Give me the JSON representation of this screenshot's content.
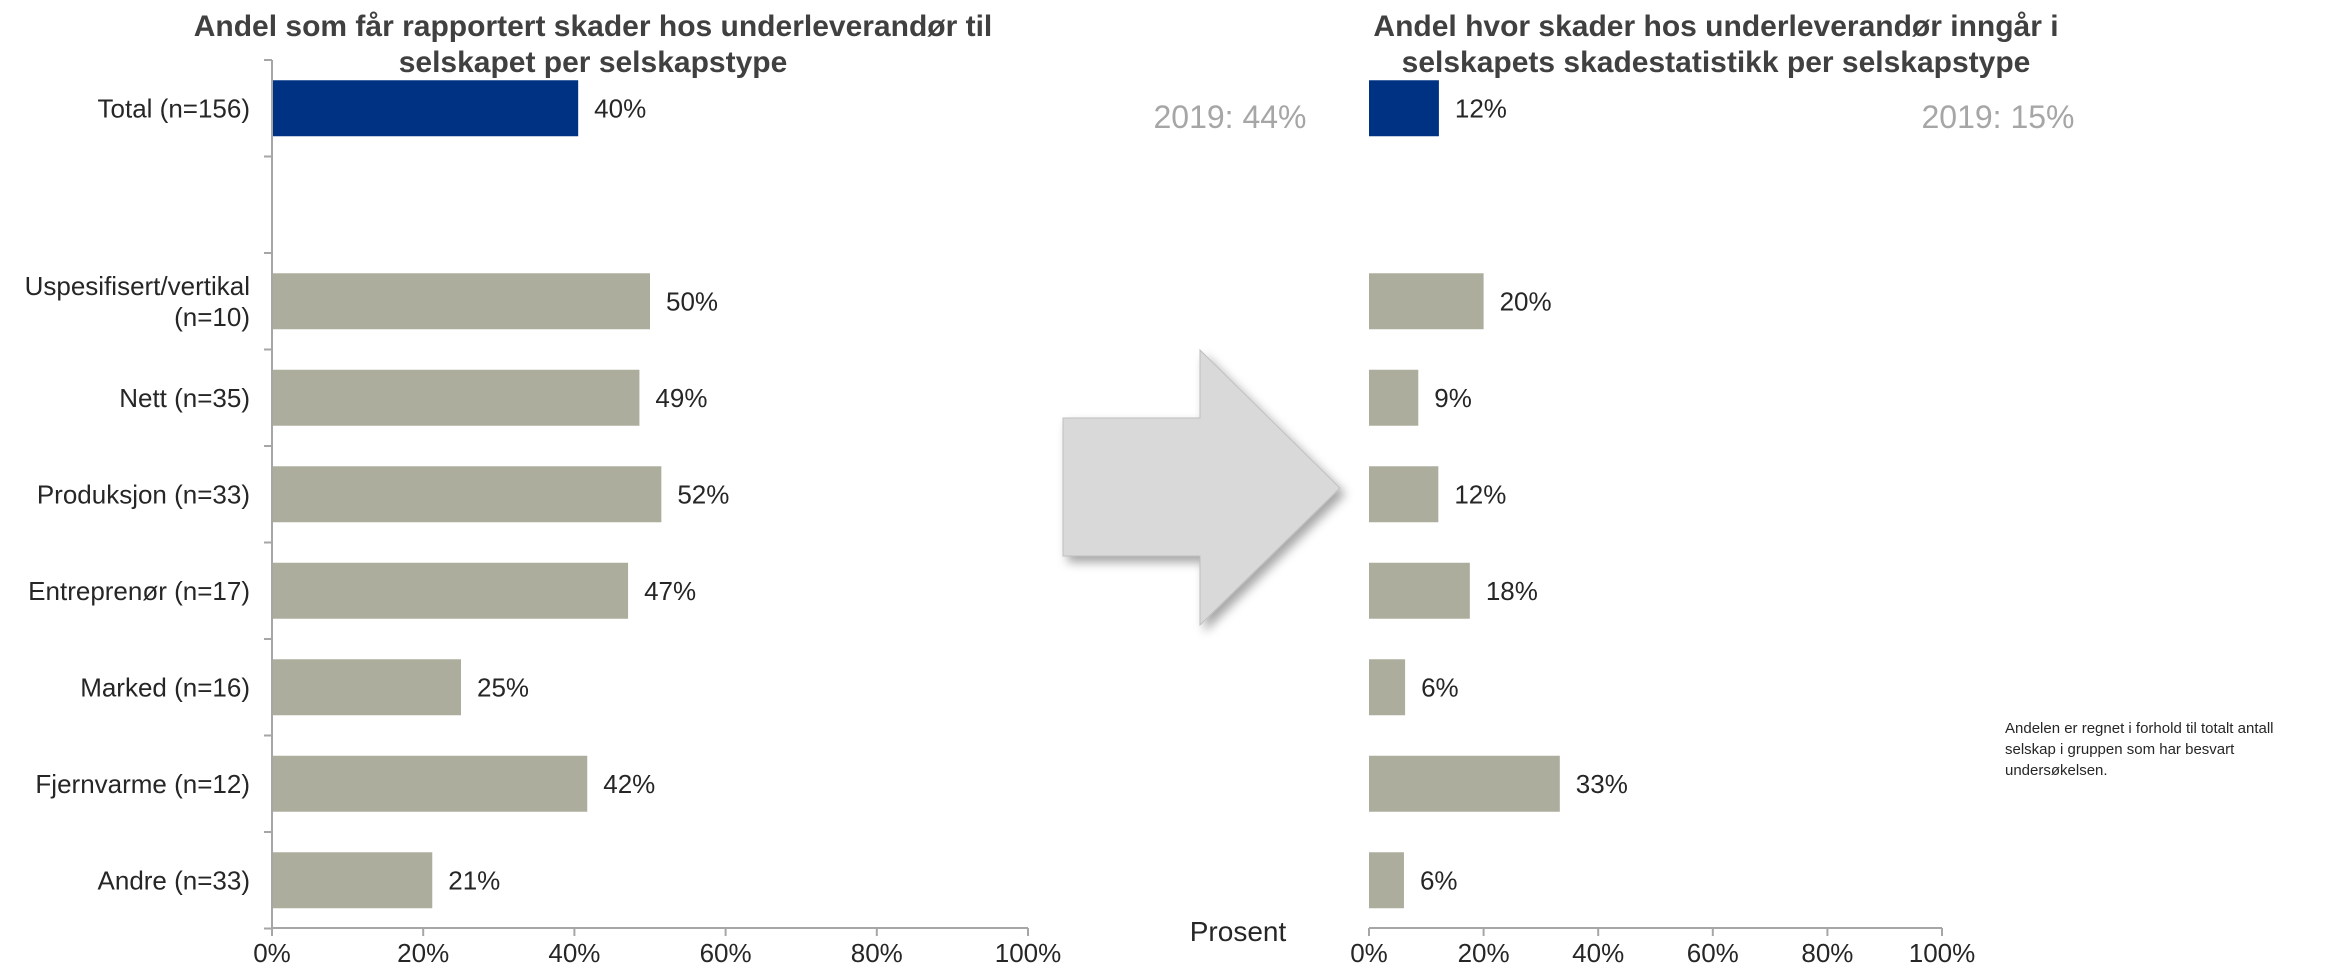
{
  "chart_data": [
    {
      "type": "bar",
      "orientation": "horizontal",
      "title": "Andel som får rapportert skader hos underleverandør til selskapet per selskapstype",
      "title_lines": [
        "Andel som får rapportert skader hos underleverandør til",
        "selskapet per selskapstype"
      ],
      "categories": [
        "Total (n=156)",
        "",
        "Uspesifisert/vertikal (n=10)",
        "Nett (n=35)",
        "Produksjon (n=33)",
        "Entreprenør (n=17)",
        "Marked (n=16)",
        "Fjernvarme (n=12)",
        "Andre (n=33)"
      ],
      "category_lines": [
        [
          "Total (n=156)"
        ],
        [],
        [
          "Uspesifisert/vertikal",
          "(n=10)"
        ],
        [
          "Nett (n=35)"
        ],
        [
          "Produksjon (n=33)"
        ],
        [
          "Entreprenør (n=17)"
        ],
        [
          "Marked (n=16)"
        ],
        [
          "Fjernvarme (n=12)"
        ],
        [
          "Andre (n=33)"
        ]
      ],
      "values": [
        40.5,
        null,
        50,
        48.6,
        51.5,
        47.1,
        25,
        41.7,
        21.2
      ],
      "value_labels": [
        "40%",
        "",
        "50%",
        "49%",
        "52%",
        "47%",
        "25%",
        "42%",
        "21%"
      ],
      "bar_colors": [
        "#003283",
        "",
        "#adad9e",
        "#adad9e",
        "#adad9e",
        "#adad9e",
        "#adad9e",
        "#adad9e",
        "#adad9e"
      ],
      "xlim": [
        0,
        100
      ],
      "xticks": [
        "0%",
        "20%",
        "40%",
        "60%",
        "80%",
        "100%"
      ],
      "previous_year_note": "2019: 44%",
      "xlabel": "",
      "ylabel": "",
      "grid": false
    },
    {
      "type": "bar",
      "orientation": "horizontal",
      "title": "Andel hvor skader hos underleverandør inngår i selskapets skadestatistikk per selskapstype",
      "title_lines": [
        "Andel hvor skader hos underleverandør inngår i",
        "selskapets skadestatistikk per selskapstype"
      ],
      "categories": [
        "Total (n=156)",
        "",
        "Uspesifisert/vertikal (n=10)",
        "Nett (n=35)",
        "Produksjon (n=33)",
        "Entreprenør (n=17)",
        "Marked (n=16)",
        "Fjernvarme (n=12)",
        "Andre (n=33)"
      ],
      "values": [
        12.2,
        null,
        20,
        8.6,
        12.1,
        17.6,
        6.3,
        33.3,
        6.1
      ],
      "value_labels": [
        "12%",
        "",
        "20%",
        "9%",
        "12%",
        "18%",
        "6%",
        "33%",
        "6%"
      ],
      "bar_colors": [
        "#003283",
        "",
        "#adad9e",
        "#adad9e",
        "#adad9e",
        "#adad9e",
        "#adad9e",
        "#adad9e",
        "#adad9e"
      ],
      "xlim": [
        0,
        100
      ],
      "xticks": [
        "0%",
        "20%",
        "40%",
        "60%",
        "80%",
        "100%"
      ],
      "previous_year_note": "2019: 15%",
      "xlabel": "Prosent",
      "ylabel": "",
      "grid": false
    }
  ],
  "footnote": "Andelen er regnet i forhold til totalt antall selskap i gruppen som har besvart undersøkelsen.",
  "arrow_color": "#d9d9d9"
}
